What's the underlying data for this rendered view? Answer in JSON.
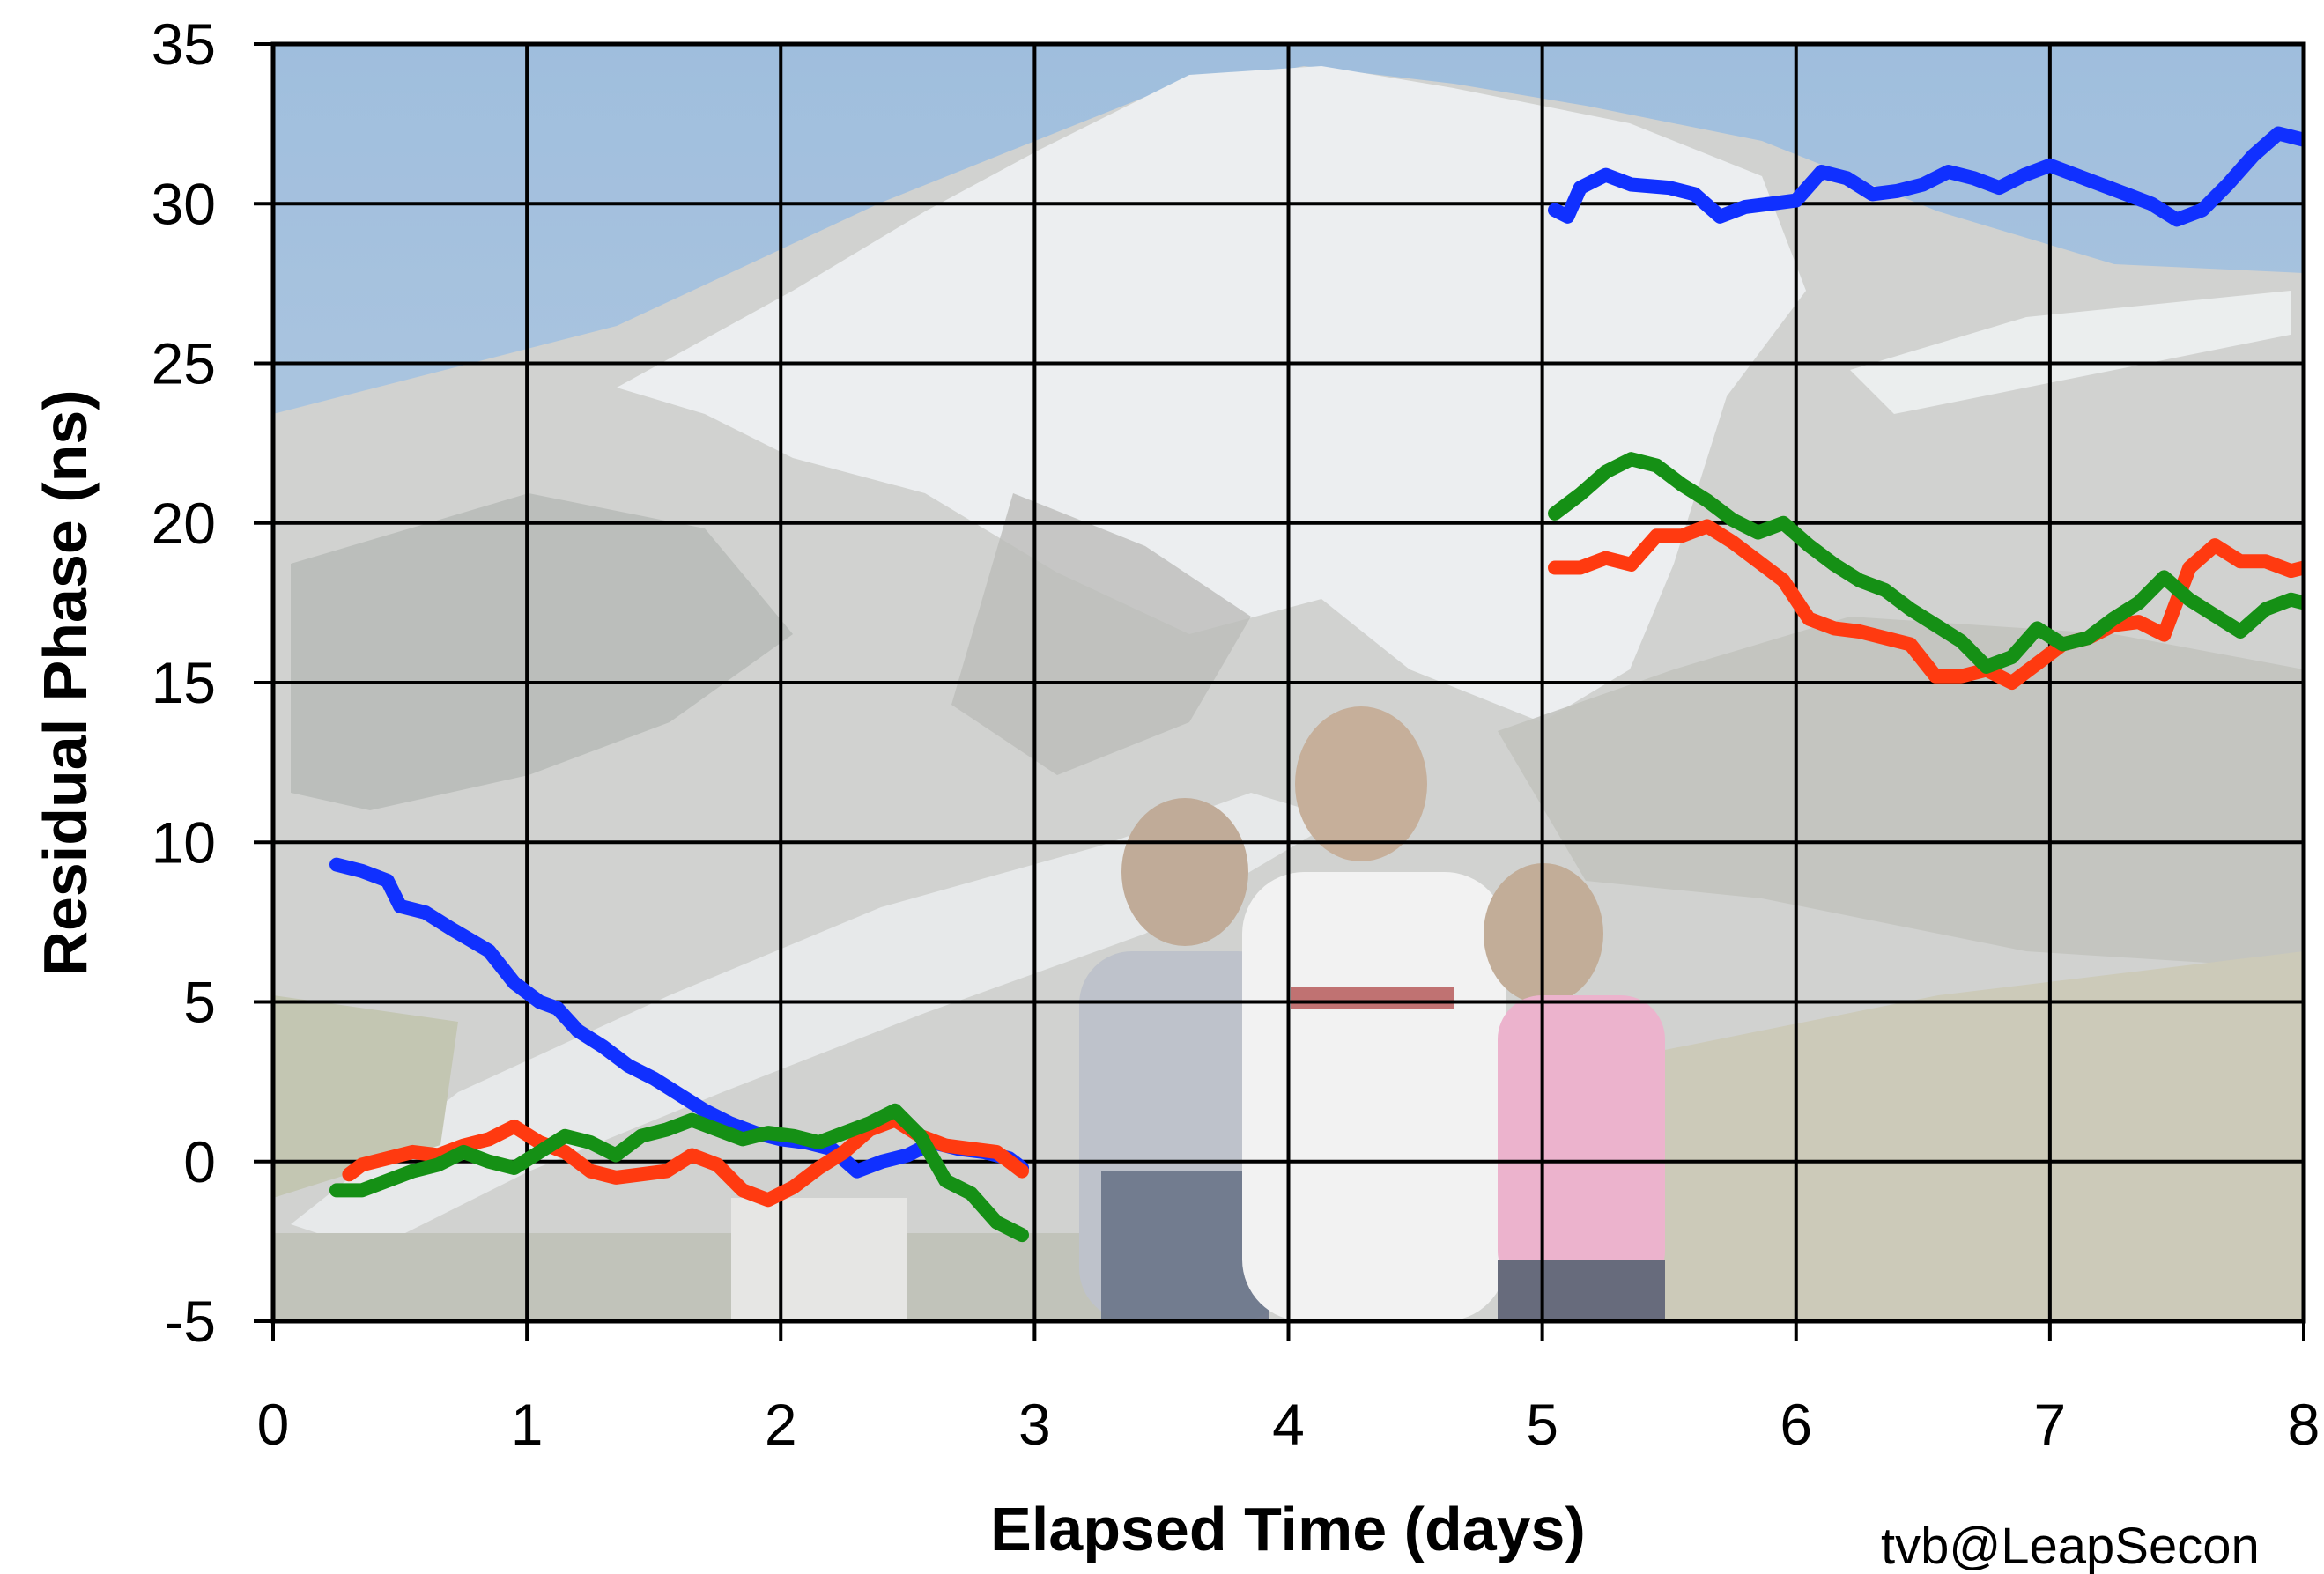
{
  "chart_data": {
    "type": "line",
    "title": "",
    "xlabel": "Elapsed Time (days)",
    "ylabel": "Residual Phase (ns)",
    "xlim": [
      0,
      8
    ],
    "ylim": [
      -5,
      35
    ],
    "xticks": [
      "0",
      "1",
      "2",
      "3",
      "4",
      "5",
      "6",
      "7",
      "8"
    ],
    "yticks": [
      "-5",
      "0",
      "5",
      "10",
      "15",
      "20",
      "25",
      "30",
      "35"
    ],
    "grid": true,
    "legend": "none",
    "background": "photograph of a snow-capped mountain with three children in the foreground",
    "credit": "tvb@LeapSecon",
    "series": [
      {
        "color": "#1030ff",
        "segments": [
          [
            [
              0.25,
              9.3
            ],
            [
              0.35,
              9.1
            ],
            [
              0.45,
              8.8
            ],
            [
              0.5,
              8.0
            ],
            [
              0.6,
              7.8
            ],
            [
              0.7,
              7.3
            ],
            [
              0.85,
              6.6
            ],
            [
              0.95,
              5.6
            ],
            [
              1.05,
              5.0
            ],
            [
              1.12,
              4.8
            ],
            [
              1.2,
              4.1
            ],
            [
              1.3,
              3.6
            ],
            [
              1.4,
              3.0
            ],
            [
              1.5,
              2.6
            ],
            [
              1.6,
              2.1
            ],
            [
              1.7,
              1.6
            ],
            [
              1.8,
              1.2
            ],
            [
              1.9,
              0.9
            ],
            [
              2.0,
              0.7
            ],
            [
              2.1,
              0.6
            ],
            [
              2.2,
              0.4
            ],
            [
              2.3,
              -0.3
            ],
            [
              2.4,
              0.0
            ],
            [
              2.5,
              0.2
            ],
            [
              2.6,
              0.6
            ],
            [
              2.7,
              0.4
            ],
            [
              2.8,
              0.3
            ],
            [
              2.9,
              0.1
            ],
            [
              2.95,
              -0.2
            ]
          ],
          [
            [
              5.05,
              29.8
            ],
            [
              5.1,
              29.6
            ],
            [
              5.15,
              30.5
            ],
            [
              5.25,
              30.9
            ],
            [
              5.35,
              30.6
            ],
            [
              5.5,
              30.5
            ],
            [
              5.6,
              30.3
            ],
            [
              5.7,
              29.6
            ],
            [
              5.8,
              29.9
            ],
            [
              5.9,
              30.0
            ],
            [
              6.0,
              30.1
            ],
            [
              6.1,
              31.0
            ],
            [
              6.2,
              30.8
            ],
            [
              6.3,
              30.3
            ],
            [
              6.4,
              30.4
            ],
            [
              6.5,
              30.6
            ],
            [
              6.6,
              31.0
            ],
            [
              6.7,
              30.8
            ],
            [
              6.8,
              30.5
            ],
            [
              6.9,
              30.9
            ],
            [
              7.0,
              31.2
            ],
            [
              7.1,
              30.9
            ],
            [
              7.2,
              30.6
            ],
            [
              7.3,
              30.3
            ],
            [
              7.4,
              30.0
            ],
            [
              7.5,
              29.5
            ],
            [
              7.6,
              29.8
            ],
            [
              7.7,
              30.6
            ],
            [
              7.8,
              31.5
            ],
            [
              7.9,
              32.2
            ],
            [
              8.0,
              32.0
            ]
          ]
        ]
      },
      {
        "color": "#ff3a10",
        "segments": [
          [
            [
              0.3,
              -0.4
            ],
            [
              0.35,
              -0.1
            ],
            [
              0.45,
              0.1
            ],
            [
              0.55,
              0.3
            ],
            [
              0.65,
              0.2
            ],
            [
              0.75,
              0.5
            ],
            [
              0.85,
              0.7
            ],
            [
              0.95,
              1.1
            ],
            [
              1.05,
              0.6
            ],
            [
              1.15,
              0.3
            ],
            [
              1.25,
              -0.3
            ],
            [
              1.35,
              -0.5
            ],
            [
              1.45,
              -0.4
            ],
            [
              1.55,
              -0.3
            ],
            [
              1.65,
              0.2
            ],
            [
              1.75,
              -0.1
            ],
            [
              1.85,
              -0.9
            ],
            [
              1.95,
              -1.2
            ],
            [
              2.05,
              -0.8
            ],
            [
              2.15,
              -0.2
            ],
            [
              2.25,
              0.3
            ],
            [
              2.35,
              1.0
            ],
            [
              2.45,
              1.3
            ],
            [
              2.55,
              0.8
            ],
            [
              2.65,
              0.5
            ],
            [
              2.75,
              0.4
            ],
            [
              2.85,
              0.3
            ],
            [
              2.95,
              -0.3
            ]
          ],
          [
            [
              5.05,
              18.6
            ],
            [
              5.15,
              18.6
            ],
            [
              5.25,
              18.9
            ],
            [
              5.35,
              18.7
            ],
            [
              5.45,
              19.6
            ],
            [
              5.55,
              19.6
            ],
            [
              5.65,
              19.9
            ],
            [
              5.75,
              19.4
            ],
            [
              5.85,
              18.8
            ],
            [
              5.95,
              18.2
            ],
            [
              6.05,
              17.0
            ],
            [
              6.15,
              16.7
            ],
            [
              6.25,
              16.6
            ],
            [
              6.35,
              16.4
            ],
            [
              6.45,
              16.2
            ],
            [
              6.55,
              15.2
            ],
            [
              6.65,
              15.2
            ],
            [
              6.75,
              15.4
            ],
            [
              6.85,
              15.0
            ],
            [
              6.95,
              15.6
            ],
            [
              7.05,
              16.2
            ],
            [
              7.15,
              16.4
            ],
            [
              7.25,
              16.8
            ],
            [
              7.35,
              16.9
            ],
            [
              7.45,
              16.5
            ],
            [
              7.55,
              18.6
            ],
            [
              7.65,
              19.3
            ],
            [
              7.75,
              18.8
            ],
            [
              7.85,
              18.8
            ],
            [
              7.95,
              18.5
            ],
            [
              8.0,
              18.6
            ]
          ]
        ]
      },
      {
        "color": "#159015",
        "segments": [
          [
            [
              0.25,
              -0.9
            ],
            [
              0.35,
              -0.9
            ],
            [
              0.45,
              -0.6
            ],
            [
              0.55,
              -0.3
            ],
            [
              0.65,
              -0.1
            ],
            [
              0.75,
              0.3
            ],
            [
              0.85,
              0.0
            ],
            [
              0.95,
              -0.2
            ],
            [
              1.05,
              0.3
            ],
            [
              1.15,
              0.8
            ],
            [
              1.25,
              0.6
            ],
            [
              1.35,
              0.2
            ],
            [
              1.45,
              0.8
            ],
            [
              1.55,
              1.0
            ],
            [
              1.65,
              1.3
            ],
            [
              1.75,
              1.0
            ],
            [
              1.85,
              0.7
            ],
            [
              1.95,
              0.9
            ],
            [
              2.05,
              0.8
            ],
            [
              2.15,
              0.6
            ],
            [
              2.25,
              0.9
            ],
            [
              2.35,
              1.2
            ],
            [
              2.45,
              1.6
            ],
            [
              2.55,
              0.8
            ],
            [
              2.65,
              -0.6
            ],
            [
              2.75,
              -1.0
            ],
            [
              2.85,
              -1.9
            ],
            [
              2.95,
              -2.3
            ]
          ],
          [
            [
              5.05,
              20.3
            ],
            [
              5.15,
              20.9
            ],
            [
              5.25,
              21.6
            ],
            [
              5.35,
              22.0
            ],
            [
              5.45,
              21.8
            ],
            [
              5.55,
              21.2
            ],
            [
              5.65,
              20.7
            ],
            [
              5.75,
              20.1
            ],
            [
              5.85,
              19.7
            ],
            [
              5.95,
              20.0
            ],
            [
              6.05,
              19.3
            ],
            [
              6.15,
              18.7
            ],
            [
              6.25,
              18.2
            ],
            [
              6.35,
              17.9
            ],
            [
              6.45,
              17.3
            ],
            [
              6.55,
              16.8
            ],
            [
              6.65,
              16.3
            ],
            [
              6.75,
              15.5
            ],
            [
              6.85,
              15.8
            ],
            [
              6.95,
              16.7
            ],
            [
              7.05,
              16.2
            ],
            [
              7.15,
              16.4
            ],
            [
              7.25,
              17.0
            ],
            [
              7.35,
              17.5
            ],
            [
              7.45,
              18.3
            ],
            [
              7.55,
              17.6
            ],
            [
              7.65,
              17.1
            ],
            [
              7.75,
              16.6
            ],
            [
              7.85,
              17.3
            ],
            [
              7.95,
              17.6
            ],
            [
              8.0,
              17.5
            ]
          ]
        ]
      }
    ]
  }
}
